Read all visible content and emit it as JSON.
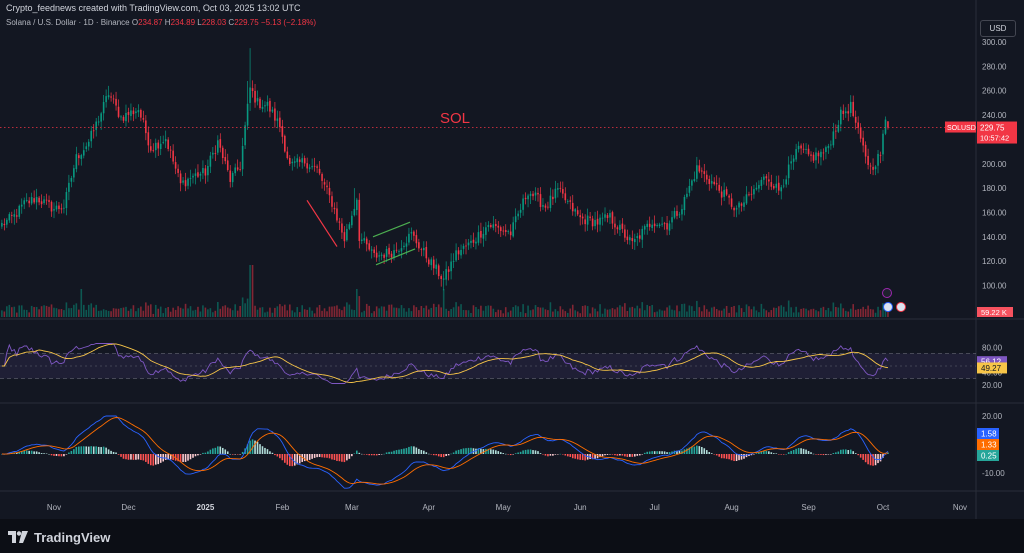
{
  "header": {
    "attribution": "Crypto_feednews created with TradingView.com, Oct 03, 2025 13:02 UTC",
    "symbol": "Solana / U.S. Dollar · 1D · Binance",
    "ohlc": [
      {
        "label": "O",
        "value": "234.87"
      },
      {
        "label": "H",
        "value": "234.89"
      },
      {
        "label": "L",
        "value": "228.03"
      },
      {
        "label": "C",
        "value": "229.75"
      },
      {
        "label": "",
        "value": "−5.13 (−2.18%)"
      }
    ]
  },
  "currency_button": "USD",
  "annotation_label": "SOL",
  "price_tag": {
    "symbol": "SOLUSD",
    "price": "229.75",
    "countdown": "10:57:42"
  },
  "volume_tag": "59.22 K",
  "rsi_tags": {
    "rsi": "56.12",
    "ma": "49.27"
  },
  "macd_tags": {
    "macd": "1.58",
    "signal": "1.33",
    "hist": "0.25"
  },
  "branding": "TradingView",
  "colors": {
    "up": "#089981",
    "down": "#f23645",
    "background": "#131722",
    "rsi_line": "#7e57c2",
    "rsi_ma": "#f7c548",
    "macd_line": "#2962ff",
    "signal_line": "#ff6d00",
    "annotation_red": "#f23645",
    "annotation_green": "#4caf50"
  },
  "chart_data": [
    {
      "type": "candlestick",
      "title": "Solana / U.S. Dollar · 1D · Binance",
      "x_tick_labels": [
        "Nov",
        "Dec",
        "2025",
        "Feb",
        "Mar",
        "Apr",
        "May",
        "Jun",
        "Jul",
        "Aug",
        "Sep",
        "Oct",
        "Nov"
      ],
      "y_tick_labels": [
        "300.00",
        "280.00",
        "260.00",
        "240.00",
        "220.00",
        "200.00",
        "180.00",
        "160.00",
        "140.00",
        "120.00",
        "100.00"
      ],
      "ylim": [
        88,
        302
      ],
      "price_line": 229.75,
      "anchors": [
        {
          "date": "2024-10-11",
          "close": 150
        },
        {
          "date": "2024-10-16",
          "close": 157
        },
        {
          "date": "2024-10-20",
          "close": 167
        },
        {
          "date": "2024-10-25",
          "close": 172
        },
        {
          "date": "2024-11-01",
          "close": 163
        },
        {
          "date": "2024-11-05",
          "close": 165
        },
        {
          "date": "2024-11-10",
          "close": 205
        },
        {
          "date": "2024-11-15",
          "close": 218
        },
        {
          "date": "2024-11-20",
          "close": 242
        },
        {
          "date": "2024-11-23",
          "close": 258
        },
        {
          "date": "2024-11-28",
          "close": 238
        },
        {
          "date": "2024-12-05",
          "close": 245
        },
        {
          "date": "2024-12-10",
          "close": 213
        },
        {
          "date": "2024-12-16",
          "close": 221
        },
        {
          "date": "2024-12-22",
          "close": 183
        },
        {
          "date": "2024-12-27",
          "close": 190
        },
        {
          "date": "2025-01-01",
          "close": 193
        },
        {
          "date": "2025-01-06",
          "close": 218
        },
        {
          "date": "2025-01-11",
          "close": 187
        },
        {
          "date": "2025-01-15",
          "close": 198
        },
        {
          "date": "2025-01-19",
          "close": 262
        },
        {
          "date": "2025-01-22",
          "close": 250
        },
        {
          "date": "2025-01-26",
          "close": 248
        },
        {
          "date": "2025-01-31",
          "close": 231
        },
        {
          "date": "2025-02-04",
          "close": 198
        },
        {
          "date": "2025-02-10",
          "close": 202
        },
        {
          "date": "2025-02-15",
          "close": 195
        },
        {
          "date": "2025-02-21",
          "close": 168
        },
        {
          "date": "2025-02-26",
          "close": 138
        },
        {
          "date": "2025-03-03",
          "close": 172
        },
        {
          "date": "2025-03-04",
          "close": 140
        },
        {
          "date": "2025-03-10",
          "close": 124
        },
        {
          "date": "2025-03-18",
          "close": 128
        },
        {
          "date": "2025-03-25",
          "close": 142
        },
        {
          "date": "2025-04-02",
          "close": 118
        },
        {
          "date": "2025-04-07",
          "close": 105
        },
        {
          "date": "2025-04-12",
          "close": 126
        },
        {
          "date": "2025-04-18",
          "close": 135
        },
        {
          "date": "2025-04-25",
          "close": 150
        },
        {
          "date": "2025-05-04",
          "close": 143
        },
        {
          "date": "2025-05-11",
          "close": 178
        },
        {
          "date": "2025-05-18",
          "close": 165
        },
        {
          "date": "2025-05-23",
          "close": 178
        },
        {
          "date": "2025-06-01",
          "close": 155
        },
        {
          "date": "2025-06-08",
          "close": 152
        },
        {
          "date": "2025-06-13",
          "close": 156
        },
        {
          "date": "2025-06-22",
          "close": 134
        },
        {
          "date": "2025-06-30",
          "close": 153
        },
        {
          "date": "2025-07-06",
          "close": 150
        },
        {
          "date": "2025-07-12",
          "close": 165
        },
        {
          "date": "2025-07-18",
          "close": 196
        },
        {
          "date": "2025-07-24",
          "close": 185
        },
        {
          "date": "2025-07-30",
          "close": 172
        },
        {
          "date": "2025-08-03",
          "close": 162
        },
        {
          "date": "2025-08-09",
          "close": 175
        },
        {
          "date": "2025-08-15",
          "close": 190
        },
        {
          "date": "2025-08-20",
          "close": 178
        },
        {
          "date": "2025-08-28",
          "close": 212
        },
        {
          "date": "2025-09-02",
          "close": 205
        },
        {
          "date": "2025-09-08",
          "close": 210
        },
        {
          "date": "2025-09-14",
          "close": 240
        },
        {
          "date": "2025-09-18",
          "close": 247
        },
        {
          "date": "2025-09-22",
          "close": 218
        },
        {
          "date": "2025-09-26",
          "close": 196
        },
        {
          "date": "2025-09-30",
          "close": 208
        },
        {
          "date": "2025-10-02",
          "close": 234.87
        },
        {
          "date": "2025-10-03",
          "close": 229.75
        }
      ],
      "annotations": [
        "SOL",
        "declining trend line",
        "rising channel"
      ]
    },
    {
      "type": "bar",
      "title": "Volume",
      "last_value": "59.22 K"
    },
    {
      "type": "line",
      "title": "RSI",
      "y_tick_labels": [
        "80.00",
        "60.00",
        "40.00",
        "20.00"
      ],
      "band": [
        30,
        70
      ],
      "last_values": {
        "rsi": 56.12,
        "ma": 49.27
      }
    },
    {
      "type": "line",
      "title": "MACD",
      "y_tick_labels": [
        "20.00",
        "0.00",
        "-10.00"
      ],
      "last_values": {
        "macd": 1.58,
        "signal": 1.33,
        "histogram": 0.25
      }
    }
  ]
}
